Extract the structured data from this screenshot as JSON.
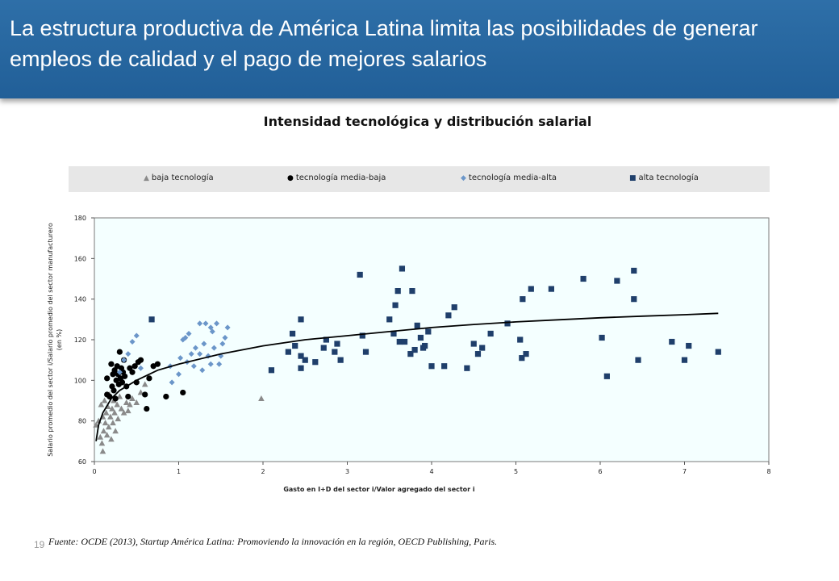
{
  "slide": {
    "title": "La estructura productiva de América Latina limita las posibilidades de generar empleos de calidad y el pago de mejores salarios",
    "page_number": "19",
    "source": "Fuente: OCDE (2013), Startup América Latina: Promoviendo la innovación en la región, OECD Publishing, Paris."
  },
  "colors": {
    "banner": "#26649d",
    "plot_background": "#f4ffff",
    "baja": "#8a8a8a",
    "media_baja": "#000000",
    "media_alta": "#6b96c9",
    "alta": "#1f3f6b",
    "trend": "#000000"
  },
  "chart_data": {
    "type": "scatter",
    "title": "Intensidad tecnológica y distribución salarial",
    "xlabel": "Gasto en I+D del sector i/Valor agregado del sector i",
    "ylabel": "Salario promedio del sector i/Salario promedio del sector manufacturero (en %)",
    "xlim": [
      0,
      8
    ],
    "ylim": [
      60,
      180
    ],
    "xticks": [
      "0",
      "1",
      "2",
      "3",
      "4",
      "5",
      "6",
      "7",
      "8"
    ],
    "yticks": [
      "60",
      "80",
      "100",
      "120",
      "140",
      "160",
      "180"
    ],
    "grid": false,
    "legend_position": "top",
    "series": [
      {
        "name": "baja tecnología",
        "marker": "triangle",
        "points": [
          [
            0.02,
            78
          ],
          [
            0.05,
            80
          ],
          [
            0.07,
            72
          ],
          [
            0.08,
            88
          ],
          [
            0.09,
            69
          ],
          [
            0.1,
            82
          ],
          [
            0.1,
            65
          ],
          [
            0.11,
            75
          ],
          [
            0.12,
            90
          ],
          [
            0.13,
            79
          ],
          [
            0.14,
            84
          ],
          [
            0.15,
            73
          ],
          [
            0.16,
            87
          ],
          [
            0.17,
            77
          ],
          [
            0.18,
            93
          ],
          [
            0.19,
            82
          ],
          [
            0.2,
            71
          ],
          [
            0.21,
            86
          ],
          [
            0.22,
            79
          ],
          [
            0.23,
            90
          ],
          [
            0.24,
            84
          ],
          [
            0.25,
            75
          ],
          [
            0.27,
            88
          ],
          [
            0.28,
            81
          ],
          [
            0.3,
            92
          ],
          [
            0.32,
            86
          ],
          [
            0.35,
            84
          ],
          [
            0.38,
            89
          ],
          [
            0.4,
            85
          ],
          [
            0.42,
            88
          ],
          [
            0.45,
            91
          ],
          [
            0.5,
            89
          ],
          [
            0.55,
            94
          ],
          [
            0.6,
            98
          ],
          [
            1.98,
            91
          ]
        ]
      },
      {
        "name": "tecnología media-baja",
        "marker": "circle",
        "points": [
          [
            0.15,
            93
          ],
          [
            0.15,
            101
          ],
          [
            0.18,
            92
          ],
          [
            0.2,
            108
          ],
          [
            0.21,
            97
          ],
          [
            0.22,
            103
          ],
          [
            0.23,
            95
          ],
          [
            0.24,
            105
          ],
          [
            0.25,
            91
          ],
          [
            0.26,
            100
          ],
          [
            0.27,
            107
          ],
          [
            0.28,
            103
          ],
          [
            0.29,
            98
          ],
          [
            0.3,
            114
          ],
          [
            0.31,
            101
          ],
          [
            0.32,
            106
          ],
          [
            0.33,
            99
          ],
          [
            0.34,
            104
          ],
          [
            0.35,
            110
          ],
          [
            0.36,
            102
          ],
          [
            0.38,
            97
          ],
          [
            0.4,
            92
          ],
          [
            0.42,
            106
          ],
          [
            0.45,
            104
          ],
          [
            0.48,
            107
          ],
          [
            0.5,
            99
          ],
          [
            0.52,
            109
          ],
          [
            0.55,
            110
          ],
          [
            0.6,
            93
          ],
          [
            0.62,
            86
          ],
          [
            0.65,
            101
          ],
          [
            0.7,
            107
          ],
          [
            0.75,
            108
          ],
          [
            0.85,
            92
          ],
          [
            1.05,
            94
          ]
        ]
      },
      {
        "name": "tecnología media-alta",
        "marker": "diamond",
        "points": [
          [
            0.3,
            104
          ],
          [
            0.35,
            110
          ],
          [
            0.4,
            113
          ],
          [
            0.45,
            119
          ],
          [
            0.5,
            122
          ],
          [
            0.55,
            106
          ],
          [
            0.9,
            107
          ],
          [
            0.92,
            99
          ],
          [
            1.0,
            103
          ],
          [
            1.02,
            111
          ],
          [
            1.05,
            120
          ],
          [
            1.1,
            109
          ],
          [
            1.12,
            123
          ],
          [
            1.15,
            113
          ],
          [
            1.18,
            107
          ],
          [
            1.2,
            116
          ],
          [
            1.25,
            113
          ],
          [
            1.28,
            105
          ],
          [
            1.3,
            118
          ],
          [
            1.32,
            128
          ],
          [
            1.35,
            112
          ],
          [
            1.38,
            108
          ],
          [
            1.4,
            124
          ],
          [
            1.42,
            116
          ],
          [
            1.45,
            128
          ],
          [
            1.48,
            108
          ],
          [
            1.5,
            112
          ],
          [
            1.52,
            118
          ],
          [
            1.55,
            121
          ],
          [
            1.58,
            126
          ],
          [
            1.25,
            128
          ],
          [
            1.38,
            126
          ],
          [
            1.08,
            121
          ]
        ]
      },
      {
        "name": "alta tecnología",
        "marker": "square",
        "points": [
          [
            0.68,
            130
          ],
          [
            2.1,
            105
          ],
          [
            2.3,
            114
          ],
          [
            2.35,
            123
          ],
          [
            2.38,
            117
          ],
          [
            2.45,
            112
          ],
          [
            2.45,
            106
          ],
          [
            2.45,
            130
          ],
          [
            2.5,
            110
          ],
          [
            2.62,
            109
          ],
          [
            2.72,
            116
          ],
          [
            2.75,
            120
          ],
          [
            2.85,
            114
          ],
          [
            2.88,
            118
          ],
          [
            2.92,
            110
          ],
          [
            3.15,
            152
          ],
          [
            3.18,
            122
          ],
          [
            3.22,
            114
          ],
          [
            3.5,
            130
          ],
          [
            3.55,
            123
          ],
          [
            3.57,
            137
          ],
          [
            3.6,
            144
          ],
          [
            3.62,
            119
          ],
          [
            3.65,
            155
          ],
          [
            3.68,
            119
          ],
          [
            3.75,
            113
          ],
          [
            3.77,
            144
          ],
          [
            3.8,
            115
          ],
          [
            3.83,
            127
          ],
          [
            3.87,
            121
          ],
          [
            3.9,
            116
          ],
          [
            3.92,
            117
          ],
          [
            3.96,
            124
          ],
          [
            4.0,
            107
          ],
          [
            4.15,
            107
          ],
          [
            4.2,
            132
          ],
          [
            4.27,
            136
          ],
          [
            4.42,
            106
          ],
          [
            4.5,
            118
          ],
          [
            4.55,
            113
          ],
          [
            4.6,
            116
          ],
          [
            4.7,
            123
          ],
          [
            4.9,
            128
          ],
          [
            5.05,
            120
          ],
          [
            5.07,
            111
          ],
          [
            5.08,
            140
          ],
          [
            5.12,
            113
          ],
          [
            5.18,
            145
          ],
          [
            5.42,
            145
          ],
          [
            5.8,
            150
          ],
          [
            6.02,
            121
          ],
          [
            6.08,
            102
          ],
          [
            6.2,
            149
          ],
          [
            6.4,
            154
          ],
          [
            6.4,
            140
          ],
          [
            6.45,
            110
          ],
          [
            6.85,
            119
          ],
          [
            7.0,
            110
          ],
          [
            7.05,
            117
          ],
          [
            7.4,
            114
          ]
        ]
      }
    ],
    "trendline": {
      "type": "logarithmic",
      "points": [
        [
          0.02,
          70
        ],
        [
          0.05,
          78
        ],
        [
          0.1,
          84
        ],
        [
          0.2,
          91
        ],
        [
          0.3,
          95
        ],
        [
          0.5,
          100
        ],
        [
          0.75,
          105
        ],
        [
          1.0,
          108
        ],
        [
          1.5,
          113
        ],
        [
          2.0,
          117
        ],
        [
          2.5,
          120
        ],
        [
          3.0,
          122
        ],
        [
          3.5,
          124
        ],
        [
          4.0,
          126
        ],
        [
          4.5,
          127.5
        ],
        [
          5.0,
          128.8
        ],
        [
          5.5,
          129.8
        ],
        [
          6.0,
          130.8
        ],
        [
          6.5,
          131.6
        ],
        [
          7.0,
          132.3
        ],
        [
          7.4,
          133
        ]
      ]
    }
  }
}
